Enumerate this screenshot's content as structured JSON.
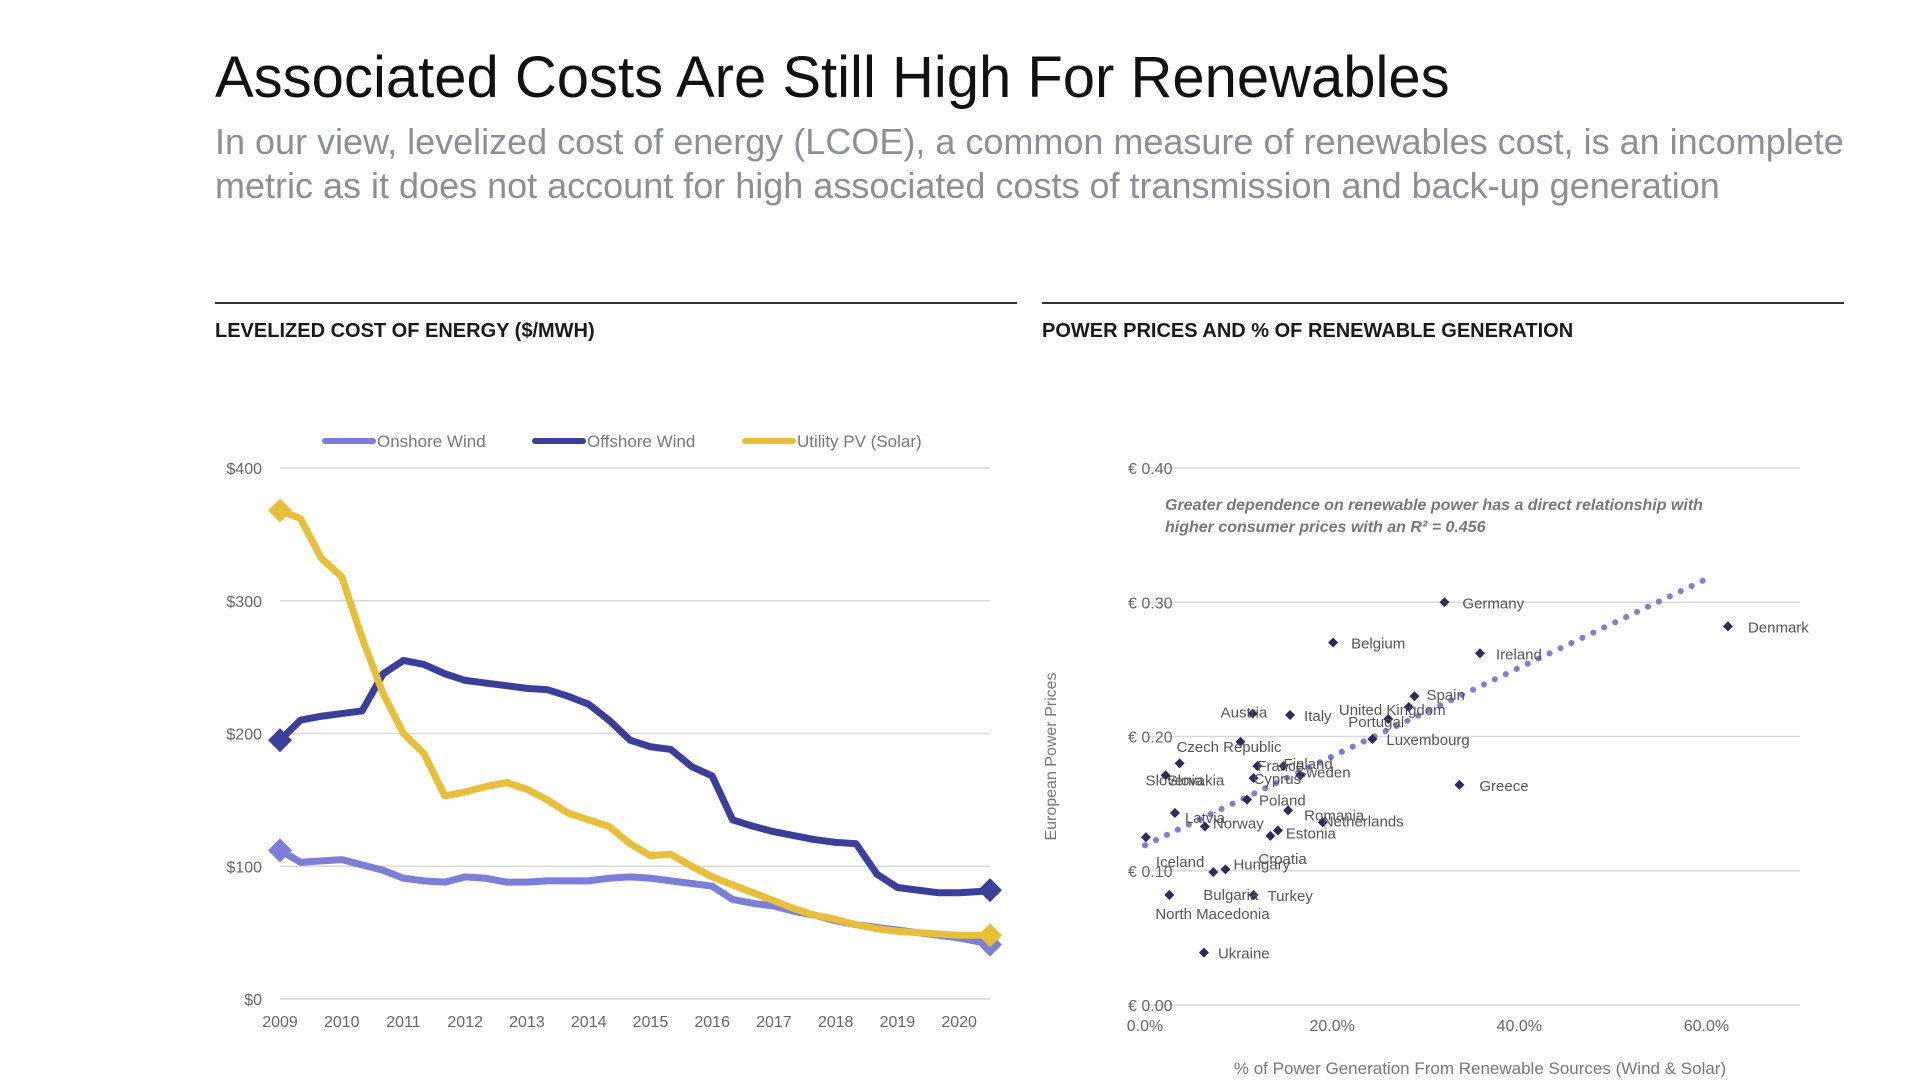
{
  "header": {
    "title": "Associated Costs Are Still High For Renewables",
    "subtitle": "In our view, levelized cost of energy (LCOE), a common measure of renewables cost, is an incomplete metric as it does not account for high associated costs of transmission and back-up generation"
  },
  "panels": {
    "left_title": "LEVELIZED COST OF ENERGY ($/MWH)",
    "right_title": "POWER PRICES AND % OF RENEWABLE GENERATION"
  },
  "chart_data": [
    {
      "type": "line",
      "title": "LEVELIZED COST OF ENERGY ($/MWH)",
      "xlabel": "",
      "ylabel": "",
      "x": [
        2009,
        2009.33,
        2009.67,
        2010,
        2010.33,
        2010.67,
        2011,
        2011.33,
        2011.67,
        2012,
        2012.33,
        2012.67,
        2013,
        2013.33,
        2013.67,
        2014,
        2014.33,
        2014.67,
        2015,
        2015.33,
        2015.67,
        2016,
        2016.33,
        2016.67,
        2017,
        2017.33,
        2017.67,
        2018,
        2018.33,
        2018.67,
        2019,
        2019.33,
        2019.67,
        2020,
        2020.33,
        2020.5
      ],
      "xticks": [
        "2009",
        "2010",
        "2011",
        "2012",
        "2013",
        "2014",
        "2015",
        "2016",
        "2017",
        "2018",
        "2019",
        "2020"
      ],
      "xlim": [
        2009,
        2020.5
      ],
      "ylim": [
        0,
        400
      ],
      "yticks": [
        0,
        100,
        200,
        300,
        400
      ],
      "ytick_labels": [
        "$0",
        "$100",
        "$200",
        "$300",
        "$400"
      ],
      "grid": true,
      "legend_position": "top",
      "series": [
        {
          "name": "Onshore Wind",
          "color": "#7b7fd8",
          "values": [
            112,
            103,
            104,
            105,
            101,
            97,
            91,
            89,
            88,
            92,
            91,
            88,
            88,
            89,
            89,
            89,
            91,
            92,
            91,
            89,
            87,
            85,
            75,
            72,
            70,
            66,
            63,
            59,
            56,
            54,
            52,
            50,
            48,
            46,
            43,
            41
          ]
        },
        {
          "name": "Offshore Wind",
          "color": "#3a3f9a",
          "values": [
            195,
            210,
            213,
            215,
            217,
            245,
            255,
            252,
            245,
            240,
            238,
            236,
            234,
            233,
            228,
            222,
            210,
            195,
            190,
            188,
            175,
            168,
            135,
            130,
            126,
            123,
            120,
            118,
            117,
            94,
            84,
            82,
            80,
            80,
            81,
            82
          ]
        },
        {
          "name": "Utility PV (Solar)",
          "color": "#e8bf3a",
          "values": [
            368,
            362,
            332,
            318,
            272,
            230,
            200,
            185,
            153,
            156,
            160,
            163,
            158,
            150,
            140,
            135,
            130,
            117,
            108,
            109,
            100,
            92,
            86,
            80,
            74,
            68,
            63,
            60,
            56,
            53,
            51,
            50,
            49,
            48,
            48,
            48
          ]
        }
      ]
    },
    {
      "type": "scatter",
      "title": "POWER PRICES AND % OF RENEWABLE GENERATION",
      "xlabel": "% of Power Generation From Renewable Sources (Wind & Solar)",
      "ylabel": "European Power Prices",
      "xlim": [
        0,
        70
      ],
      "ylim": [
        0,
        0.4
      ],
      "xticks": [
        0,
        20,
        40,
        60
      ],
      "xtick_labels": [
        "0.0%",
        "20.0%",
        "40.0%",
        "60.0%"
      ],
      "yticks": [
        0,
        0.1,
        0.2,
        0.3,
        0.4
      ],
      "ytick_labels": [
        "€ 0.00",
        "€ 0.10",
        "€ 0.20",
        "€ 0.30",
        "€ 0.40"
      ],
      "grid": true,
      "annotation": "Greater dependence on renewable power has a direct relationship with higher consumer prices with an R² = 0.456",
      "trendline": {
        "x": [
          0,
          60.5
        ],
        "y": [
          0.119,
          0.319
        ]
      },
      "marker_color": "#2b2b5e",
      "trend_color": "#7b7fd8",
      "points": [
        {
          "label": "Germany",
          "x": 32.0,
          "y": 0.3
        },
        {
          "label": "Denmark",
          "x": 62.3,
          "y": 0.282
        },
        {
          "label": "Belgium",
          "x": 20.1,
          "y": 0.27
        },
        {
          "label": "Ireland",
          "x": 35.8,
          "y": 0.262
        },
        {
          "label": "Spain",
          "x": 28.8,
          "y": 0.23
        },
        {
          "label": "United Kingdom",
          "x": 28.2,
          "y": 0.222
        },
        {
          "label": "Austria",
          "x": 11.5,
          "y": 0.217
        },
        {
          "label": "Italy",
          "x": 15.5,
          "y": 0.216
        },
        {
          "label": "Portugal",
          "x": 26.0,
          "y": 0.213
        },
        {
          "label": "Luxembourg",
          "x": 24.3,
          "y": 0.198
        },
        {
          "label": "Czech Republic",
          "x": 10.2,
          "y": 0.196
        },
        {
          "label": "France",
          "x": 12.0,
          "y": 0.178
        },
        {
          "label": "Finland",
          "x": 14.8,
          "y": 0.178
        },
        {
          "label": "Cyprus",
          "x": 11.6,
          "y": 0.169
        },
        {
          "label": "Sweden",
          "x": 16.6,
          "y": 0.171
        },
        {
          "label": "Slovakia",
          "x": 3.7,
          "y": 0.18
        },
        {
          "label": "Greece",
          "x": 33.6,
          "y": 0.164
        },
        {
          "label": "Slovenia",
          "x": 2.2,
          "y": 0.171
        },
        {
          "label": "Poland",
          "x": 10.9,
          "y": 0.153
        },
        {
          "label": "Latvia",
          "x": 3.2,
          "y": 0.143
        },
        {
          "label": "Romania",
          "x": 15.3,
          "y": 0.145
        },
        {
          "label": "Netherlands",
          "x": 19.0,
          "y": 0.136
        },
        {
          "label": "Norway",
          "x": 6.4,
          "y": 0.133
        },
        {
          "label": "Estonia",
          "x": 14.2,
          "y": 0.13
        },
        {
          "label": "Iceland",
          "x": 0.1,
          "y": 0.125
        },
        {
          "label": "Croatia",
          "x": 13.4,
          "y": 0.126
        },
        {
          "label": "Hungary",
          "x": 8.6,
          "y": 0.101
        },
        {
          "label": "Bulgaria",
          "x": 7.3,
          "y": 0.099
        },
        {
          "label": "Turkey",
          "x": 11.6,
          "y": 0.082
        },
        {
          "label": "North Macedonia",
          "x": 2.6,
          "y": 0.082
        },
        {
          "label": "Ukraine",
          "x": 6.3,
          "y": 0.039
        }
      ]
    }
  ]
}
